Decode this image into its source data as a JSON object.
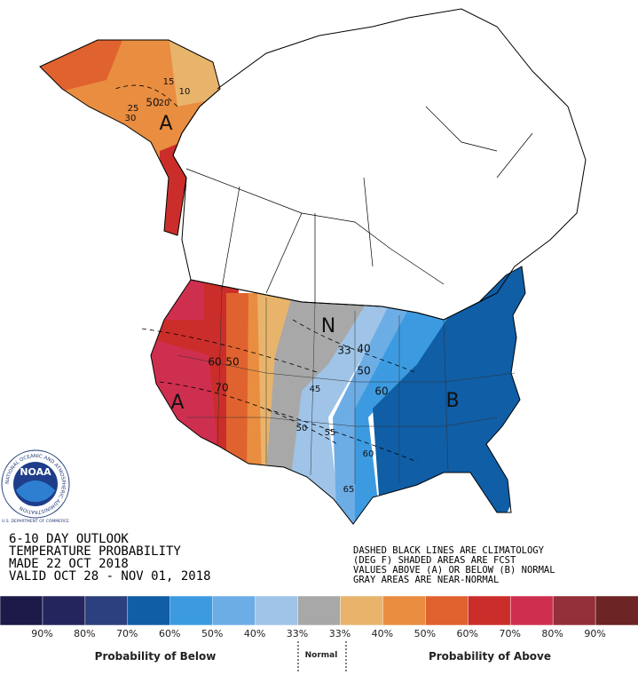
{
  "map": {
    "labels": [
      "15",
      "10",
      "20",
      "25",
      "30",
      "50",
      "A",
      "N",
      "33",
      "40",
      "50",
      "60",
      "70",
      "60",
      "50",
      "45",
      "50",
      "55",
      "60",
      "65",
      "B",
      "A"
    ]
  },
  "outlook": {
    "lines": [
      "6-10 DAY OUTLOOK",
      "TEMPERATURE PROBABILITY",
      "MADE  22 OCT 2018",
      "VALID  OCT 28 - NOV 01, 2018"
    ]
  },
  "notes": [
    "DASHED BLACK LINES ARE CLIMATOLOGY",
    "(DEG F) SHADED AREAS ARE FCST",
    "VALUES ABOVE (A) OR BELOW (B) NORMAL",
    "GRAY AREAS ARE NEAR-NORMAL"
  ],
  "logo": {
    "name": "NOAA",
    "ring": "NATIONAL OCEANIC AND ATMOSPHERIC ADMINISTRATION",
    "dept": "U.S. DEPARTMENT OF COMMERCE"
  },
  "legend": {
    "categories": [
      {
        "label": "90%",
        "color": "#1c1a48"
      },
      {
        "label": "80%",
        "color": "#25255e"
      },
      {
        "label": "70%",
        "color": "#2c3f7e"
      },
      {
        "label": "60%",
        "color": "#0f5ea6"
      },
      {
        "label": "50%",
        "color": "#3c9be0"
      },
      {
        "label": "40%",
        "color": "#6cade6"
      },
      {
        "label": "33%",
        "color": "#9fc4e8"
      },
      {
        "label": "33%",
        "color": "#a8a8a8"
      },
      {
        "label": "40%",
        "color": "#e8b46c"
      },
      {
        "label": "50%",
        "color": "#e98d40"
      },
      {
        "label": "60%",
        "color": "#e0622f"
      },
      {
        "label": "70%",
        "color": "#cb2e2a"
      },
      {
        "label": "80%",
        "color": "#cf2f4f"
      },
      {
        "label": "90%",
        "color": "#932f38"
      },
      {
        "label": "",
        "color": "#6d2424"
      }
    ],
    "below_title": "Probability of Below",
    "normal_title": "Normal",
    "above_title": "Probability of Above"
  }
}
